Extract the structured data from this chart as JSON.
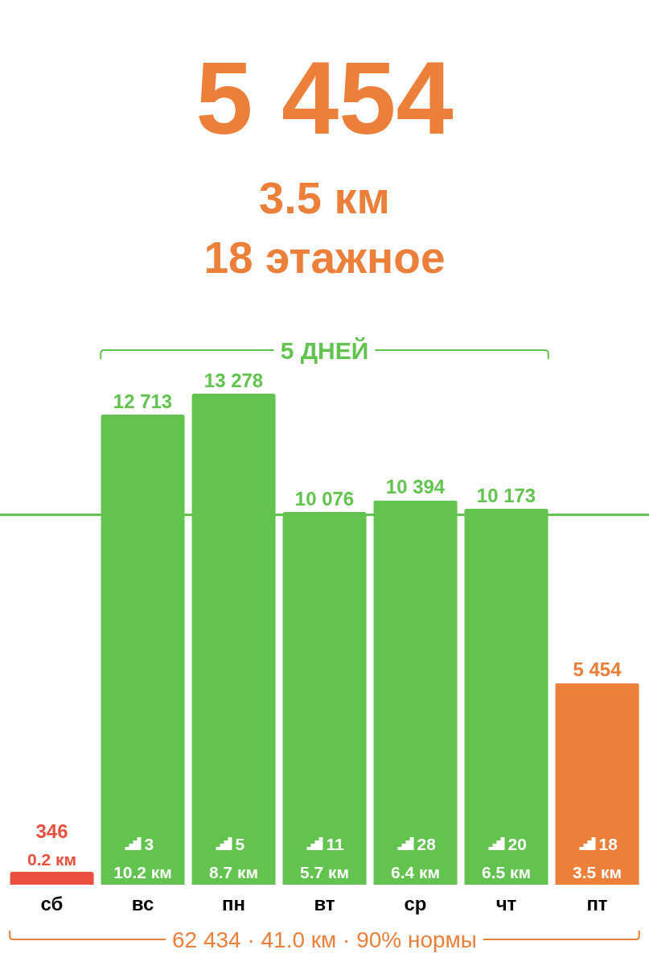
{
  "chart_data": {
    "type": "bar",
    "title": "5 454",
    "subtitle": "3.5 км",
    "categories": [
      "сб",
      "вс",
      "пн",
      "вт",
      "ср",
      "чт",
      "пт"
    ],
    "values": [
      346,
      12713,
      13278,
      10076,
      10394,
      10173,
      5454
    ],
    "colors": [
      "#e9513e",
      "#62c34f",
      "#62c34f",
      "#62c34f",
      "#62c34f",
      "#62c34f",
      "#ec7f3a"
    ],
    "value_labels": [
      "346",
      "12 713",
      "13 278",
      "10 076",
      "10 394",
      "10 173",
      "5 454"
    ],
    "ref_lines": [
      {
        "axis": "y",
        "value": 10000,
        "color": "#62c34f"
      }
    ],
    "tick_labels": "x",
    "annotations": [
      "18 этажное",
      "5 ДНЕЙ",
      "62 434 · 41.0 км · 90% нормы",
      "3",
      "5",
      "11",
      "28",
      "20",
      "18",
      "0.2 км",
      "10.2 км",
      "8.7 км",
      "5.7 км",
      "6.4 км",
      "6.5 км",
      "3.5 км"
    ]
  }
}
